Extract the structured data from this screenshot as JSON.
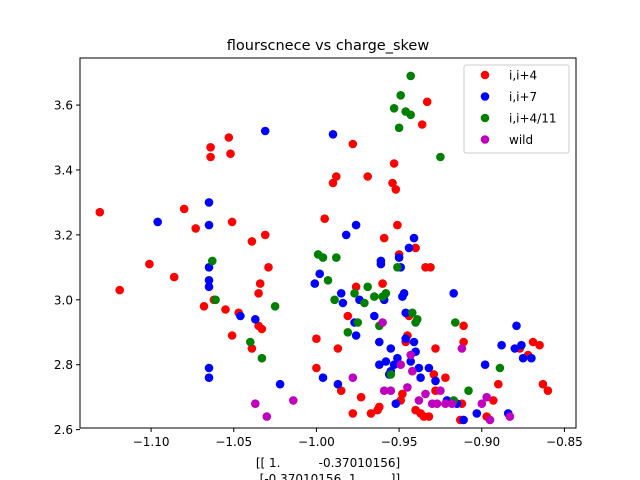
{
  "chart_data": {
    "type": "scatter",
    "title": "flourscnece vs charge_skew",
    "xlabel_lines": [
      "[[ 1.          -0.37010156]",
      " [-0.37010156  1.        ]]"
    ],
    "ylabel": "",
    "xlim": [
      -1.143,
      -0.843
    ],
    "ylim": [
      2.605,
      3.745
    ],
    "xticks": [
      -1.1,
      -1.05,
      -1.0,
      -0.95,
      -0.9,
      -0.85
    ],
    "xtick_labels": [
      "−1.10",
      "−1.05",
      "−1.00",
      "−0.95",
      "−0.90",
      "−0.85"
    ],
    "yticks": [
      2.6,
      2.8,
      3.0,
      3.2,
      3.4,
      3.6
    ],
    "ytick_labels": [
      "2.6",
      "2.8",
      "3.0",
      "3.2",
      "3.4",
      "3.6"
    ],
    "grid": false,
    "legend_position": "top-right",
    "series": [
      {
        "name": "i,i+4",
        "color": "#ff0000",
        "points": [
          [
            -1.131,
            3.27
          ],
          [
            -1.119,
            3.03
          ],
          [
            -1.101,
            3.11
          ],
          [
            -1.086,
            3.07
          ],
          [
            -1.08,
            3.28
          ],
          [
            -1.073,
            3.22
          ],
          [
            -1.068,
            2.98
          ],
          [
            -1.064,
            3.47
          ],
          [
            -1.064,
            3.44
          ],
          [
            -1.062,
            3.0
          ],
          [
            -1.055,
            2.97
          ],
          [
            -1.053,
            3.5
          ],
          [
            -1.052,
            3.45
          ],
          [
            -1.051,
            3.24
          ],
          [
            -1.051,
            2.89
          ],
          [
            -1.047,
            2.96
          ],
          [
            -1.039,
            3.18
          ],
          [
            -1.039,
            2.85
          ],
          [
            -1.035,
            2.92
          ],
          [
            -1.035,
            3.02
          ],
          [
            -1.034,
            3.05
          ],
          [
            -1.033,
            2.91
          ],
          [
            -1.031,
            3.2
          ],
          [
            -1.029,
            3.1
          ],
          [
            -1.0,
            2.88
          ],
          [
            -1.0,
            2.79
          ],
          [
            -0.995,
            3.25
          ],
          [
            -0.99,
            3.36
          ],
          [
            -0.988,
            3.38
          ],
          [
            -0.987,
            2.85
          ],
          [
            -0.985,
            2.72
          ],
          [
            -0.981,
            2.95
          ],
          [
            -0.978,
            3.48
          ],
          [
            -0.978,
            2.65
          ],
          [
            -0.976,
            3.04
          ],
          [
            -0.973,
            2.7
          ],
          [
            -0.969,
            3.38
          ],
          [
            -0.967,
            2.65
          ],
          [
            -0.963,
            2.66
          ],
          [
            -0.962,
            2.67
          ],
          [
            -0.96,
            3.05
          ],
          [
            -0.959,
            3.19
          ],
          [
            -0.954,
            3.36
          ],
          [
            -0.953,
            3.42
          ],
          [
            -0.952,
            3.34
          ],
          [
            -0.951,
            3.23
          ],
          [
            -0.95,
            3.14
          ],
          [
            -0.949,
            2.69
          ],
          [
            -0.948,
            2.71
          ],
          [
            -0.946,
            2.87
          ],
          [
            -0.945,
            2.89
          ],
          [
            -0.944,
            2.95
          ],
          [
            -0.94,
            3.16
          ],
          [
            -0.94,
            2.66
          ],
          [
            -0.937,
            2.65
          ],
          [
            -0.936,
            3.54
          ],
          [
            -0.935,
            2.64
          ],
          [
            -0.934,
            3.1
          ],
          [
            -0.933,
            3.61
          ],
          [
            -0.932,
            2.64
          ],
          [
            -0.931,
            3.1
          ],
          [
            -0.929,
            2.77
          ],
          [
            -0.928,
            2.72
          ],
          [
            -0.928,
            2.85
          ],
          [
            -0.922,
            2.76
          ],
          [
            -0.913,
            2.63
          ],
          [
            -0.912,
            2.68
          ],
          [
            -0.911,
            2.87
          ],
          [
            -0.911,
            2.92
          ],
          [
            -0.897,
            2.64
          ],
          [
            -0.893,
            2.69
          ],
          [
            -0.89,
            2.74
          ],
          [
            -0.877,
            2.85
          ],
          [
            -0.872,
            2.83
          ],
          [
            -0.869,
            2.87
          ],
          [
            -0.865,
            2.86
          ],
          [
            -0.863,
            2.74
          ],
          [
            -0.86,
            2.72
          ]
        ]
      },
      {
        "name": "i,i+7",
        "color": "#0000ff",
        "points": [
          [
            -1.096,
            3.24
          ],
          [
            -1.065,
            3.3
          ],
          [
            -1.065,
            3.23
          ],
          [
            -1.065,
            3.1
          ],
          [
            -1.065,
            3.06
          ],
          [
            -1.065,
            3.04
          ],
          [
            -1.065,
            2.79
          ],
          [
            -1.065,
            2.76
          ],
          [
            -1.046,
            2.95
          ],
          [
            -1.037,
            2.94
          ],
          [
            -1.031,
            3.52
          ],
          [
            -1.022,
            2.74
          ],
          [
            -1.001,
            3.05
          ],
          [
            -0.998,
            3.08
          ],
          [
            -0.996,
            2.76
          ],
          [
            -0.99,
            3.51
          ],
          [
            -0.987,
            2.74
          ],
          [
            -0.985,
            3.02
          ],
          [
            -0.984,
            2.99
          ],
          [
            -0.982,
            3.2
          ],
          [
            -0.977,
            2.93
          ],
          [
            -0.976,
            2.89
          ],
          [
            -0.976,
            3.23
          ],
          [
            -0.974,
            3.0
          ],
          [
            -0.965,
            2.95
          ],
          [
            -0.962,
            2.87
          ],
          [
            -0.962,
            2.8
          ],
          [
            -0.961,
            3.12
          ],
          [
            -0.961,
            3.11
          ],
          [
            -0.959,
            3.0
          ],
          [
            -0.958,
            2.81
          ],
          [
            -0.956,
            2.77
          ],
          [
            -0.955,
            2.78
          ],
          [
            -0.955,
            2.85
          ],
          [
            -0.953,
            2.8
          ],
          [
            -0.952,
            2.68
          ],
          [
            -0.951,
            2.82
          ],
          [
            -0.95,
            3.13
          ],
          [
            -0.949,
            3.1
          ],
          [
            -0.948,
            3.01
          ],
          [
            -0.947,
            3.02
          ],
          [
            -0.946,
            2.96
          ],
          [
            -0.946,
            2.88
          ],
          [
            -0.944,
            3.16
          ],
          [
            -0.943,
            2.81
          ],
          [
            -0.941,
            3.19
          ],
          [
            -0.941,
            2.87
          ],
          [
            -0.94,
            2.84
          ],
          [
            -0.938,
            2.79
          ],
          [
            -0.937,
            2.76
          ],
          [
            -0.932,
            2.79
          ],
          [
            -0.928,
            2.75
          ],
          [
            -0.921,
            2.69
          ],
          [
            -0.917,
            3.02
          ],
          [
            -0.915,
            2.68
          ],
          [
            -0.911,
            2.63
          ],
          [
            -0.903,
            2.65
          ],
          [
            -0.898,
            2.8
          ],
          [
            -0.888,
            2.86
          ],
          [
            -0.884,
            2.65
          ],
          [
            -0.88,
            2.85
          ],
          [
            -0.879,
            2.92
          ],
          [
            -0.876,
            2.86
          ],
          [
            -0.875,
            2.82
          ],
          [
            -0.87,
            2.82
          ]
        ]
      },
      {
        "name": "i,i+4/11",
        "color": "#008000",
        "points": [
          [
            -1.063,
            3.12
          ],
          [
            -1.061,
            3.0
          ],
          [
            -1.04,
            2.87
          ],
          [
            -1.033,
            2.82
          ],
          [
            -1.025,
            2.98
          ],
          [
            -0.999,
            3.14
          ],
          [
            -0.996,
            3.13
          ],
          [
            -0.993,
            3.06
          ],
          [
            -0.989,
            3.0
          ],
          [
            -0.988,
            3.13
          ],
          [
            -0.981,
            2.9
          ],
          [
            -0.977,
            3.02
          ],
          [
            -0.975,
            2.93
          ],
          [
            -0.971,
            2.99
          ],
          [
            -0.969,
            3.04
          ],
          [
            -0.965,
            3.01
          ],
          [
            -0.962,
            2.92
          ],
          [
            -0.96,
            3.01
          ],
          [
            -0.958,
            3.02
          ],
          [
            -0.955,
            2.77
          ],
          [
            -0.953,
            3.59
          ],
          [
            -0.951,
            3.1
          ],
          [
            -0.95,
            3.53
          ],
          [
            -0.949,
            3.63
          ],
          [
            -0.946,
            3.58
          ],
          [
            -0.943,
            3.69
          ],
          [
            -0.943,
            3.57
          ],
          [
            -0.942,
            2.96
          ],
          [
            -0.94,
            2.93
          ],
          [
            -0.939,
            2.94
          ],
          [
            -0.925,
            3.44
          ],
          [
            -0.917,
            2.69
          ],
          [
            -0.916,
            2.93
          ],
          [
            -0.908,
            2.72
          ],
          [
            -0.889,
            2.79
          ]
        ]
      },
      {
        "name": "wild",
        "color": "#bf00bf",
        "points": [
          [
            -1.037,
            2.68
          ],
          [
            -1.03,
            2.64
          ],
          [
            -1.014,
            2.69
          ],
          [
            -0.978,
            2.76
          ],
          [
            -0.96,
            2.93
          ],
          [
            -0.959,
            2.72
          ],
          [
            -0.955,
            2.72
          ],
          [
            -0.949,
            2.8
          ],
          [
            -0.945,
            2.73
          ],
          [
            -0.943,
            2.83
          ],
          [
            -0.942,
            2.78
          ],
          [
            -0.938,
            2.69
          ],
          [
            -0.934,
            2.71
          ],
          [
            -0.93,
            2.68
          ],
          [
            -0.927,
            2.68
          ],
          [
            -0.925,
            2.72
          ],
          [
            -0.922,
            2.68
          ],
          [
            -0.918,
            2.68
          ],
          [
            -0.912,
            2.85
          ],
          [
            -0.9,
            2.68
          ],
          [
            -0.897,
            2.7
          ],
          [
            -0.895,
            2.63
          ],
          [
            -0.883,
            2.64
          ]
        ]
      }
    ]
  }
}
